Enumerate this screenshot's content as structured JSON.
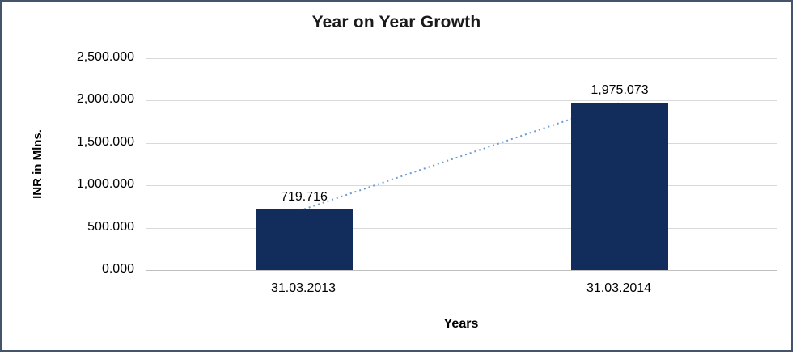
{
  "frame": {
    "background": "#ffffff",
    "border_color": "#44546A"
  },
  "chart_data": {
    "type": "bar",
    "title": "Year on Year Growth",
    "xlabel": "Years",
    "ylabel": "INR in Mlns.",
    "categories": [
      "31.03.2013",
      "31.03.2014"
    ],
    "values": [
      719.716,
      1975.073
    ],
    "value_labels": [
      "719.716",
      "1,975.073"
    ],
    "ylim": [
      0,
      2500
    ],
    "ytick_values": [
      0,
      500,
      1000,
      1500,
      2000,
      2500
    ],
    "ytick_labels": [
      "0.000",
      "500.000",
      "1,000.000",
      "1,500.000",
      "2,000.000",
      "2,500.000"
    ],
    "bar_color": "#122C5C",
    "trendline_color": "#6B9BD2",
    "gridline_color": "#D9D9D9",
    "axis_color": "#BFBFBF",
    "grid": true,
    "legend_position": "none"
  }
}
